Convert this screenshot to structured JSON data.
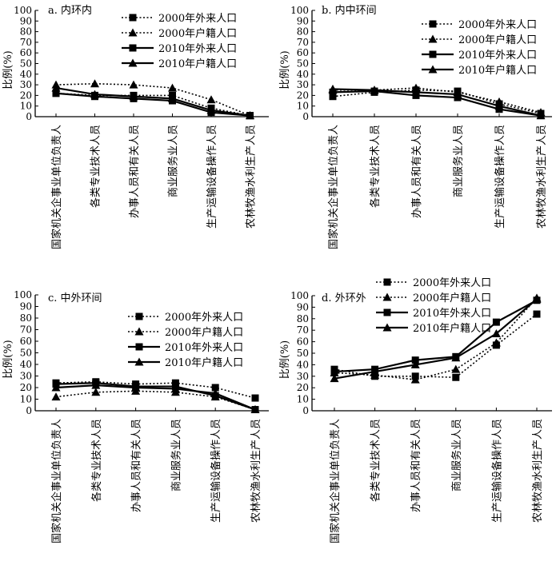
{
  "figure": {
    "ylabel": "比例(%)",
    "series_names": [
      "2000年外来人口",
      "2000年户籍人口",
      "2010年外来人口",
      "2010年户籍人口"
    ],
    "categories": [
      "国家机关企事业单位负责人",
      "各类专业技术人员",
      "办事人员和有关人员",
      "商业服务业人员",
      "生产运输设备操作人员",
      "农林牧渔水利生产人员"
    ],
    "ylim": [
      0,
      100
    ],
    "yticks": [
      0,
      10,
      20,
      30,
      40,
      50,
      60,
      70,
      80,
      90,
      100
    ],
    "colors": {
      "line": "#000000",
      "background": "#ffffff"
    }
  },
  "chart_data": [
    {
      "type": "line",
      "title": "a. 内环内",
      "legend": "top-right",
      "categories": [
        "国家机关企事业单位负责人",
        "各类专业技术人员",
        "办事人员和有关人员",
        "商业服务业人员",
        "生产运输设备操作人员",
        "农林牧渔水利生产人员"
      ],
      "ylabel": "比例(%)",
      "ylim": [
        0,
        100
      ],
      "series": [
        {
          "name": "2000年外来人口",
          "style": "dotted",
          "marker": "square",
          "values": [
            22,
            20,
            20,
            20,
            8,
            1
          ]
        },
        {
          "name": "2000年户籍人口",
          "style": "dotted",
          "marker": "triangle",
          "values": [
            30,
            31,
            30,
            27,
            16,
            1
          ]
        },
        {
          "name": "2010年外来人口",
          "style": "solid",
          "marker": "square",
          "values": [
            22,
            19,
            17,
            15,
            4,
            1
          ]
        },
        {
          "name": "2010年户籍人口",
          "style": "solid",
          "marker": "triangle",
          "values": [
            27,
            21,
            19,
            17,
            6,
            1
          ]
        }
      ]
    },
    {
      "type": "line",
      "title": "b. 内中环间",
      "legend": "top-right",
      "categories": [
        "国家机关企事业单位负责人",
        "各类专业技术人员",
        "办事人员和有关人员",
        "商业服务业人员",
        "生产运输设备操作人员",
        "农林牧渔水利生产人员"
      ],
      "ylabel": "比例(%)",
      "ylim": [
        0,
        100
      ],
      "series": [
        {
          "name": "2000年外来人口",
          "style": "dotted",
          "marker": "square",
          "values": [
            19,
            23,
            25,
            24,
            12,
            3
          ]
        },
        {
          "name": "2000年户籍人口",
          "style": "dotted",
          "marker": "triangle",
          "values": [
            25,
            25,
            27,
            23,
            14,
            4
          ]
        },
        {
          "name": "2010年外来人口",
          "style": "solid",
          "marker": "square",
          "values": [
            23,
            24,
            20,
            18,
            7,
            1
          ]
        },
        {
          "name": "2010年户籍人口",
          "style": "solid",
          "marker": "triangle",
          "values": [
            26,
            25,
            23,
            21,
            10,
            1
          ]
        }
      ]
    },
    {
      "type": "line",
      "title": "c. 中外环间",
      "legend": "top-right",
      "categories": [
        "国家机关企事业单位负责人",
        "各类专业技术人员",
        "办事人员和有关人员",
        "商业服务业人员",
        "生产运输设备操作人员",
        "农林牧渔水利生产人员"
      ],
      "ylabel": "比例(%)",
      "ylim": [
        0,
        100
      ],
      "series": [
        {
          "name": "2000年外来人口",
          "style": "dotted",
          "marker": "square",
          "values": [
            24,
            25,
            23,
            24,
            20,
            11
          ]
        },
        {
          "name": "2000年户籍人口",
          "style": "dotted",
          "marker": "triangle",
          "values": [
            12,
            16,
            17,
            16,
            12,
            1
          ]
        },
        {
          "name": "2010年外来人口",
          "style": "solid",
          "marker": "square",
          "values": [
            23,
            24,
            21,
            21,
            13,
            1
          ]
        },
        {
          "name": "2010年户籍人口",
          "style": "solid",
          "marker": "triangle",
          "values": [
            20,
            22,
            20,
            19,
            15,
            1
          ]
        }
      ]
    },
    {
      "type": "line",
      "title": "d. 外环外",
      "legend": "top-right",
      "categories": [
        "国家机关企事业单位负责人",
        "各类专业技术人员",
        "办事人员和有关人员",
        "商业服务业人员",
        "生产运输设备操作人员",
        "农林牧渔水利生产人员"
      ],
      "ylabel": "比例(%)",
      "ylim": [
        0,
        100
      ],
      "series": [
        {
          "name": "2000年外来人口",
          "style": "dotted",
          "marker": "square",
          "values": [
            36,
            30,
            30,
            29,
            57,
            84
          ]
        },
        {
          "name": "2000年户籍人口",
          "style": "dotted",
          "marker": "triangle",
          "values": [
            33,
            31,
            27,
            36,
            59,
            98
          ]
        },
        {
          "name": "2010年外来人口",
          "style": "solid",
          "marker": "square",
          "values": [
            34,
            36,
            44,
            47,
            77,
            96
          ]
        },
        {
          "name": "2010年户籍人口",
          "style": "solid",
          "marker": "triangle",
          "values": [
            28,
            34,
            40,
            46,
            67,
            97
          ]
        }
      ]
    }
  ]
}
